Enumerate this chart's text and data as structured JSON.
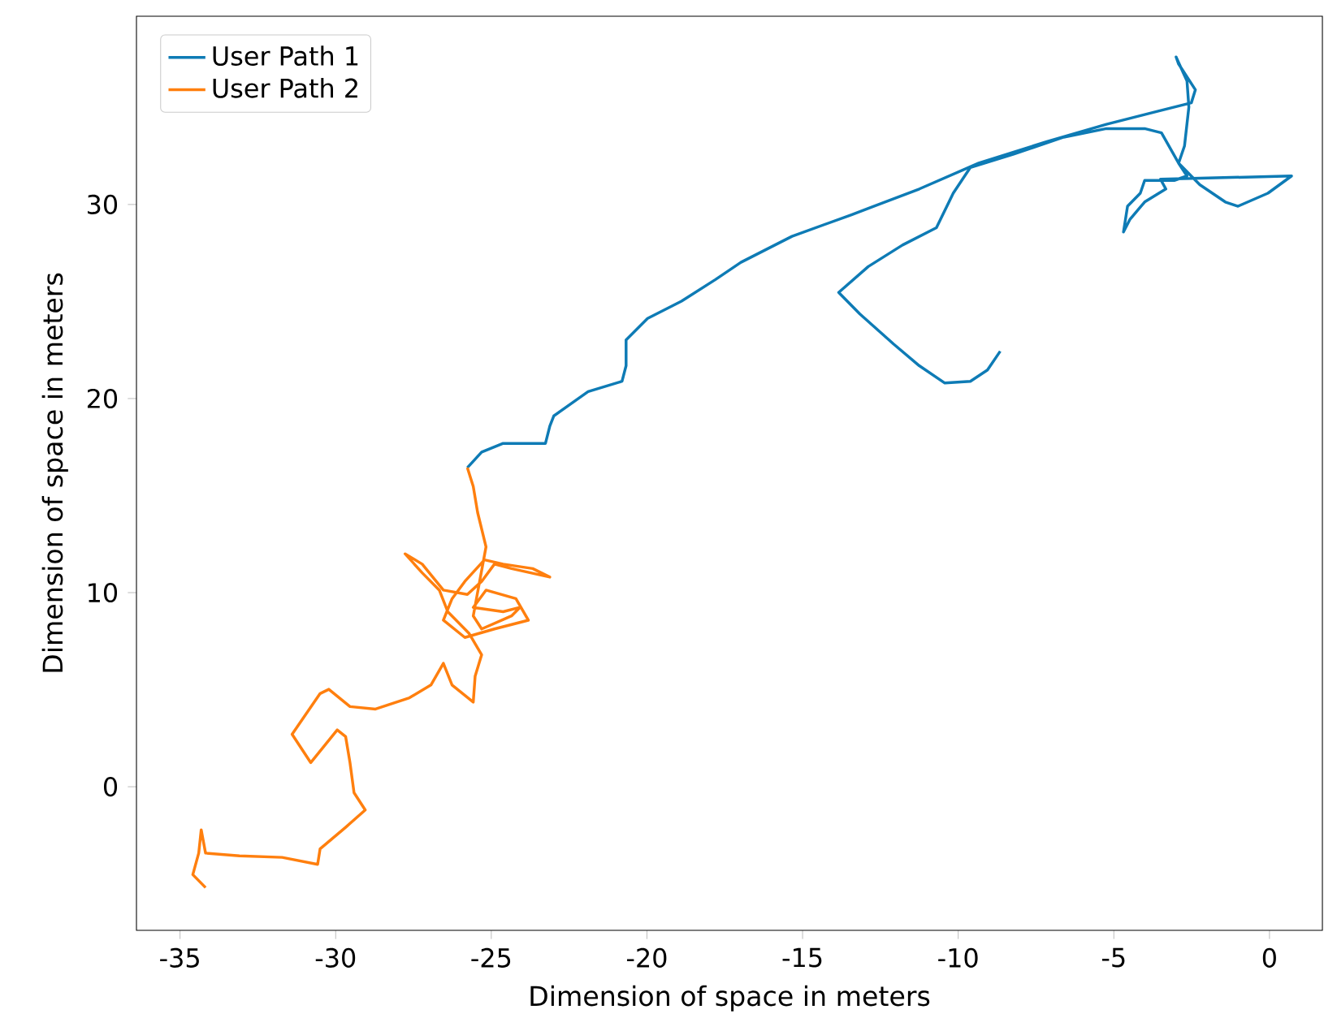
{
  "chart_data": {
    "type": "line",
    "xlabel": "Dimension of space in meters",
    "ylabel": "Dimension of space in meters",
    "xlim": [
      -36.4,
      1.7
    ],
    "ylim": [
      -7.4,
      39.7
    ],
    "xticks": [
      -35,
      -30,
      -25,
      -20,
      -15,
      -10,
      -5,
      0
    ],
    "yticks": [
      0,
      10,
      20,
      30
    ],
    "legend": "top left",
    "series": [
      {
        "name": "User Path 1",
        "color": "#0e7bb5",
        "x": [
          -25.77,
          -25.31,
          -24.62,
          -24.08,
          -23.26,
          -23.12,
          -22.99,
          -21.89,
          -20.8,
          -20.67,
          -20.67,
          -19.98,
          -18.89,
          -17.8,
          -16.98,
          -15.34,
          -13.43,
          -11.25,
          -9.34,
          -7.15,
          -5.24,
          -3.6,
          -2.51,
          -2.38,
          -2.92,
          -3.0,
          -2.65,
          -2.59,
          -2.73,
          -2.92,
          -2.65,
          -3.06,
          -4.01,
          -4.15,
          -4.56,
          -4.69,
          -4.48,
          -4.01,
          -3.33,
          -3.5,
          0.71,
          -0.05,
          -1.01,
          -1.42,
          -2.24,
          -2.92,
          -3.47,
          -4.01,
          -5.24,
          -6.61,
          -8.24,
          -9.61,
          -10.16,
          -10.7,
          -11.79,
          -12.89,
          -13.84,
          -13.16,
          -12.07,
          -11.25,
          -10.43,
          -9.61,
          -9.06,
          -8.65
        ],
        "values": [
          16.44,
          17.24,
          17.69,
          17.69,
          17.69,
          18.58,
          19.11,
          20.36,
          20.89,
          21.69,
          23.02,
          24.13,
          25.02,
          26.13,
          27.02,
          28.36,
          29.47,
          30.8,
          32.13,
          33.24,
          34.13,
          34.8,
          35.24,
          35.91,
          37.24,
          37.6,
          36.36,
          35.02,
          33.02,
          32.13,
          31.47,
          31.24,
          31.24,
          30.58,
          29.91,
          28.58,
          29.24,
          30.13,
          30.8,
          31.3,
          31.47,
          30.58,
          29.91,
          30.13,
          31.02,
          32.13,
          33.69,
          33.91,
          33.91,
          33.47,
          32.58,
          31.91,
          30.58,
          28.8,
          27.91,
          26.8,
          25.47,
          24.36,
          22.8,
          21.69,
          20.8,
          20.89,
          21.47,
          22.44
        ]
      },
      {
        "name": "User Path 2",
        "color": "#ff7f0e",
        "x": [
          -34.18,
          -34.59,
          -34.4,
          -34.32,
          -34.18,
          -33.09,
          -31.72,
          -30.58,
          -30.5,
          -29.68,
          -29.05,
          -29.41,
          -29.54,
          -29.68,
          -29.95,
          -30.8,
          -31.4,
          -30.5,
          -30.22,
          -29.54,
          -28.72,
          -27.63,
          -26.94,
          -26.54,
          -26.26,
          -25.58,
          -25.52,
          -25.31,
          -25.72,
          -26.4,
          -26.67,
          -27.22,
          -27.77,
          -27.22,
          -26.54,
          -25.77,
          -25.31,
          -24.9,
          -24.35,
          -23.12,
          -23.67,
          -24.62,
          -25.22,
          -25.85,
          -26.26,
          -26.54,
          -25.85,
          -24.9,
          -23.81,
          -24.21,
          -25.17,
          -25.58,
          -24.62,
          -24.08,
          -24.35,
          -25.31,
          -25.58,
          -25.17,
          -25.44,
          -25.58,
          -25.77
        ],
        "values": [
          -5.2,
          -4.53,
          -3.42,
          -2.22,
          -3.42,
          -3.56,
          -3.64,
          -4.0,
          -3.2,
          -2.09,
          -1.2,
          -0.31,
          1.24,
          2.58,
          2.93,
          1.24,
          2.7,
          4.8,
          5.02,
          4.13,
          4.0,
          4.58,
          5.24,
          6.36,
          5.24,
          4.36,
          5.69,
          6.8,
          7.91,
          9.02,
          10.13,
          11.02,
          12.0,
          11.47,
          10.13,
          9.91,
          10.58,
          11.47,
          11.24,
          10.8,
          11.24,
          11.47,
          11.69,
          10.58,
          9.69,
          8.58,
          7.69,
          8.13,
          8.58,
          9.69,
          10.13,
          9.24,
          9.02,
          9.24,
          8.8,
          8.13,
          8.8,
          12.36,
          14.13,
          15.47,
          16.44
        ]
      }
    ]
  }
}
